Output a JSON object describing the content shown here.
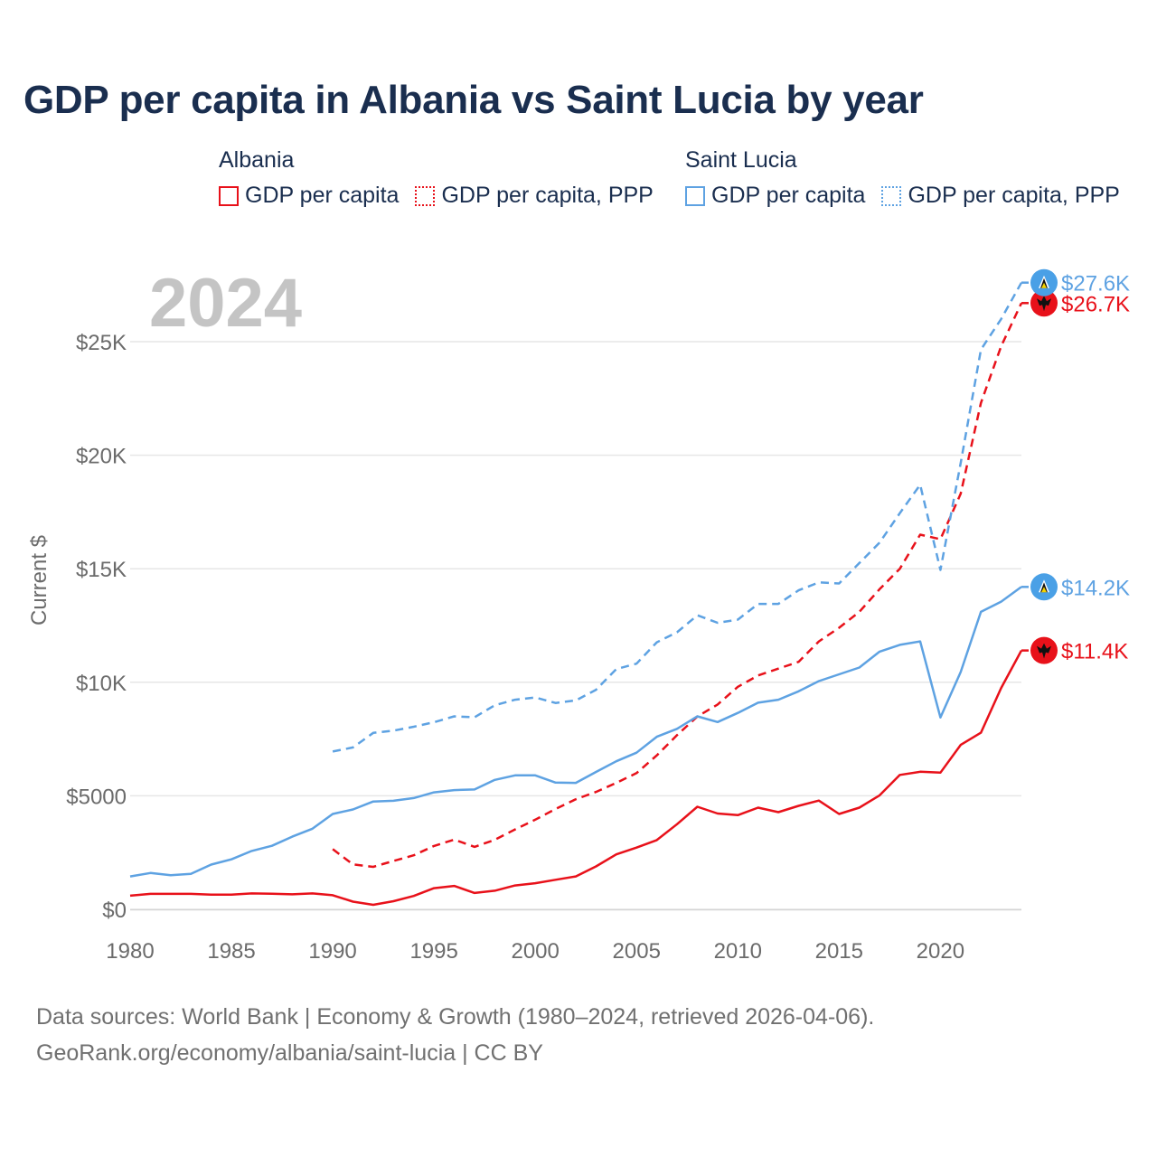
{
  "title": "GDP per capita in Albania vs Saint Lucia by year",
  "legend": {
    "groups": [
      {
        "name": "Albania",
        "color": "#e8111a",
        "items": [
          {
            "label": "GDP per capita",
            "style": "solid"
          },
          {
            "label": "GDP per capita, PPP",
            "style": "dashed"
          }
        ]
      },
      {
        "name": "Saint Lucia",
        "color": "#5ea2e2",
        "items": [
          {
            "label": "GDP per capita",
            "style": "solid"
          },
          {
            "label": "GDP per capita, PPP",
            "style": "dashed"
          }
        ]
      }
    ]
  },
  "year_display": "2024",
  "footer": {
    "line1": "Data sources: World Bank | Economy & Growth (1980–2024, retrieved 2026-04-06).",
    "line2": "GeoRank.org/economy/albania/saint-lucia | CC BY"
  },
  "colors": {
    "albania": "#e8111a",
    "saint_lucia": "#5ea2e2",
    "title": "#1a2e4f",
    "axis_text": "#6b6b6b",
    "grid": "#e6e6e6"
  },
  "chart_data": {
    "type": "line",
    "title": "GDP per capita in Albania vs Saint Lucia by year",
    "xlabel": "",
    "ylabel": "Current $",
    "xlim": [
      1980,
      2024
    ],
    "ylim": [
      0,
      28000
    ],
    "x_ticks": [
      1980,
      1985,
      1990,
      1995,
      2000,
      2005,
      2010,
      2015,
      2020
    ],
    "x_tick_labels": [
      "1980",
      "1985",
      "1990",
      "1995",
      "2000",
      "2005",
      "2010",
      "2015",
      "2020"
    ],
    "y_ticks": [
      0,
      5000,
      10000,
      15000,
      20000,
      25000
    ],
    "y_tick_labels": [
      "$0",
      "$5000",
      "$10K",
      "$15K",
      "$20K",
      "$25K"
    ],
    "grid": true,
    "series": [
      {
        "name": "Albania GDP per capita",
        "country": "Albania",
        "color": "#e8111a",
        "dashed": false,
        "end_label": "$11.4K",
        "x": [
          1980,
          1981,
          1982,
          1983,
          1984,
          1985,
          1986,
          1987,
          1988,
          1989,
          1990,
          1991,
          1992,
          1993,
          1994,
          1995,
          1996,
          1997,
          1998,
          1999,
          2000,
          2001,
          2002,
          2003,
          2004,
          2005,
          2006,
          2007,
          2008,
          2009,
          2010,
          2011,
          2012,
          2013,
          2014,
          2015,
          2016,
          2017,
          2018,
          2019,
          2020,
          2021,
          2022,
          2023,
          2024
        ],
        "values": [
          600,
          680,
          680,
          680,
          650,
          650,
          700,
          690,
          660,
          700,
          620,
          340,
          200,
          360,
          590,
          930,
          1030,
          720,
          820,
          1050,
          1150,
          1300,
          1450,
          1890,
          2420,
          2720,
          3050,
          3750,
          4520,
          4220,
          4150,
          4480,
          4280,
          4560,
          4790,
          4200,
          4480,
          5020,
          5920,
          6060,
          6020,
          7240,
          7780,
          9750,
          11400
        ]
      },
      {
        "name": "Albania GDP per capita, PPP",
        "country": "Albania",
        "color": "#e8111a",
        "dashed": true,
        "end_label": "$26.7K",
        "x": [
          1990,
          1991,
          1992,
          1993,
          1994,
          1995,
          1996,
          1997,
          1998,
          1999,
          2000,
          2001,
          2002,
          2003,
          2004,
          2005,
          2006,
          2007,
          2008,
          2009,
          2010,
          2011,
          2012,
          2013,
          2014,
          2015,
          2016,
          2017,
          2018,
          2019,
          2020,
          2021,
          2022,
          2023,
          2024
        ],
        "values": [
          2650,
          1980,
          1870,
          2130,
          2380,
          2790,
          3070,
          2750,
          3060,
          3520,
          3950,
          4420,
          4850,
          5170,
          5570,
          6000,
          6780,
          7670,
          8490,
          9020,
          9800,
          10300,
          10600,
          10900,
          11800,
          12400,
          13100,
          14100,
          15000,
          16500,
          16300,
          18300,
          22300,
          24800,
          26700
        ]
      },
      {
        "name": "Saint Lucia GDP per capita",
        "country": "Saint Lucia",
        "color": "#5ea2e2",
        "dashed": false,
        "end_label": "$14.2K",
        "x": [
          1980,
          1981,
          1982,
          1983,
          1984,
          1985,
          1986,
          1987,
          1988,
          1989,
          1990,
          1991,
          1992,
          1993,
          1994,
          1995,
          1996,
          1997,
          1998,
          1999,
          2000,
          2001,
          2002,
          2003,
          2004,
          2005,
          2006,
          2007,
          2008,
          2009,
          2010,
          2011,
          2012,
          2013,
          2014,
          2015,
          2016,
          2017,
          2018,
          2019,
          2020,
          2021,
          2022,
          2023,
          2024
        ],
        "values": [
          1450,
          1600,
          1500,
          1560,
          1970,
          2200,
          2570,
          2800,
          3200,
          3550,
          4200,
          4400,
          4750,
          4780,
          4900,
          5150,
          5250,
          5280,
          5700,
          5900,
          5900,
          5580,
          5570,
          6050,
          6520,
          6900,
          7600,
          7950,
          8500,
          8250,
          8650,
          9100,
          9230,
          9600,
          10050,
          10350,
          10650,
          11350,
          11650,
          11800,
          8450,
          10450,
          13100,
          13550,
          14200
        ]
      },
      {
        "name": "Saint Lucia GDP per capita, PPP",
        "country": "Saint Lucia",
        "color": "#5ea2e2",
        "dashed": true,
        "end_label": "$27.6K",
        "x": [
          1990,
          1991,
          1992,
          1993,
          1994,
          1995,
          1996,
          1997,
          1998,
          1999,
          2000,
          2001,
          2002,
          2003,
          2004,
          2005,
          2006,
          2007,
          2008,
          2009,
          2010,
          2011,
          2012,
          2013,
          2014,
          2015,
          2016,
          2017,
          2018,
          2019,
          2020,
          2021,
          2022,
          2023,
          2024
        ],
        "values": [
          6950,
          7130,
          7770,
          7870,
          8040,
          8240,
          8500,
          8460,
          8990,
          9230,
          9330,
          9090,
          9200,
          9670,
          10580,
          10820,
          11760,
          12200,
          12950,
          12620,
          12760,
          13450,
          13450,
          14050,
          14400,
          14350,
          15250,
          16150,
          17450,
          18700,
          14950,
          19650,
          24650,
          26000,
          27600
        ]
      }
    ]
  }
}
